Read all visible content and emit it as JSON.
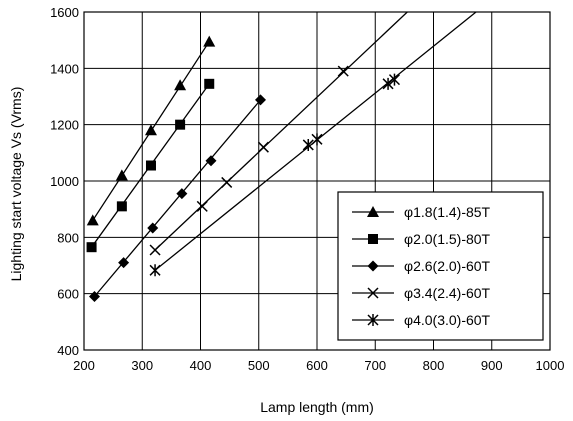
{
  "chart_data": {
    "type": "line",
    "xlabel": "Lamp length  (mm)",
    "ylabel": "Lighting start voltage  Vs (Vrms)",
    "xlim": [
      200,
      1000
    ],
    "ylim": [
      400,
      1600
    ],
    "xticks": [
      200,
      300,
      400,
      500,
      600,
      700,
      800,
      900,
      1000
    ],
    "yticks": [
      400,
      600,
      800,
      1000,
      1200,
      1400,
      1600
    ],
    "grid": true,
    "legend_position": "bottom-right",
    "series": [
      {
        "name": "φ1.8(1.4)-85T",
        "marker": "triangle",
        "points": [
          [
            215,
            860
          ],
          [
            265,
            1020
          ],
          [
            315,
            1180
          ],
          [
            365,
            1340
          ],
          [
            415,
            1495
          ]
        ],
        "fit": [
          [
            215,
            860
          ],
          [
            415,
            1495
          ]
        ]
      },
      {
        "name": "φ2.0(1.5)-80T",
        "marker": "square",
        "points": [
          [
            213,
            765
          ],
          [
            265,
            910
          ],
          [
            315,
            1055
          ],
          [
            365,
            1200
          ],
          [
            415,
            1345
          ]
        ],
        "fit": [
          [
            213,
            765
          ],
          [
            415,
            1345
          ]
        ]
      },
      {
        "name": "φ2.6(2.0)-60T",
        "marker": "diamond",
        "points": [
          [
            218,
            590
          ],
          [
            268,
            710
          ],
          [
            318,
            833
          ],
          [
            368,
            955
          ],
          [
            418,
            1072
          ],
          [
            503,
            1288
          ]
        ],
        "fit": [
          [
            218,
            590
          ],
          [
            503,
            1288
          ]
        ]
      },
      {
        "name": "φ3.4(2.4)-60T",
        "marker": "x",
        "points": [
          [
            322,
            755
          ],
          [
            403,
            910
          ],
          [
            445,
            995
          ],
          [
            508,
            1120
          ],
          [
            645,
            1390
          ]
        ],
        "fit": [
          [
            322,
            755
          ],
          [
            755,
            1600
          ]
        ]
      },
      {
        "name": "φ4.0(3.0)-60T",
        "marker": "asterisk",
        "points": [
          [
            322,
            683
          ],
          [
            585,
            1128
          ],
          [
            600,
            1148
          ],
          [
            722,
            1345
          ],
          [
            733,
            1360
          ]
        ],
        "fit": [
          [
            322,
            683
          ],
          [
            873,
            1600
          ]
        ]
      }
    ]
  }
}
